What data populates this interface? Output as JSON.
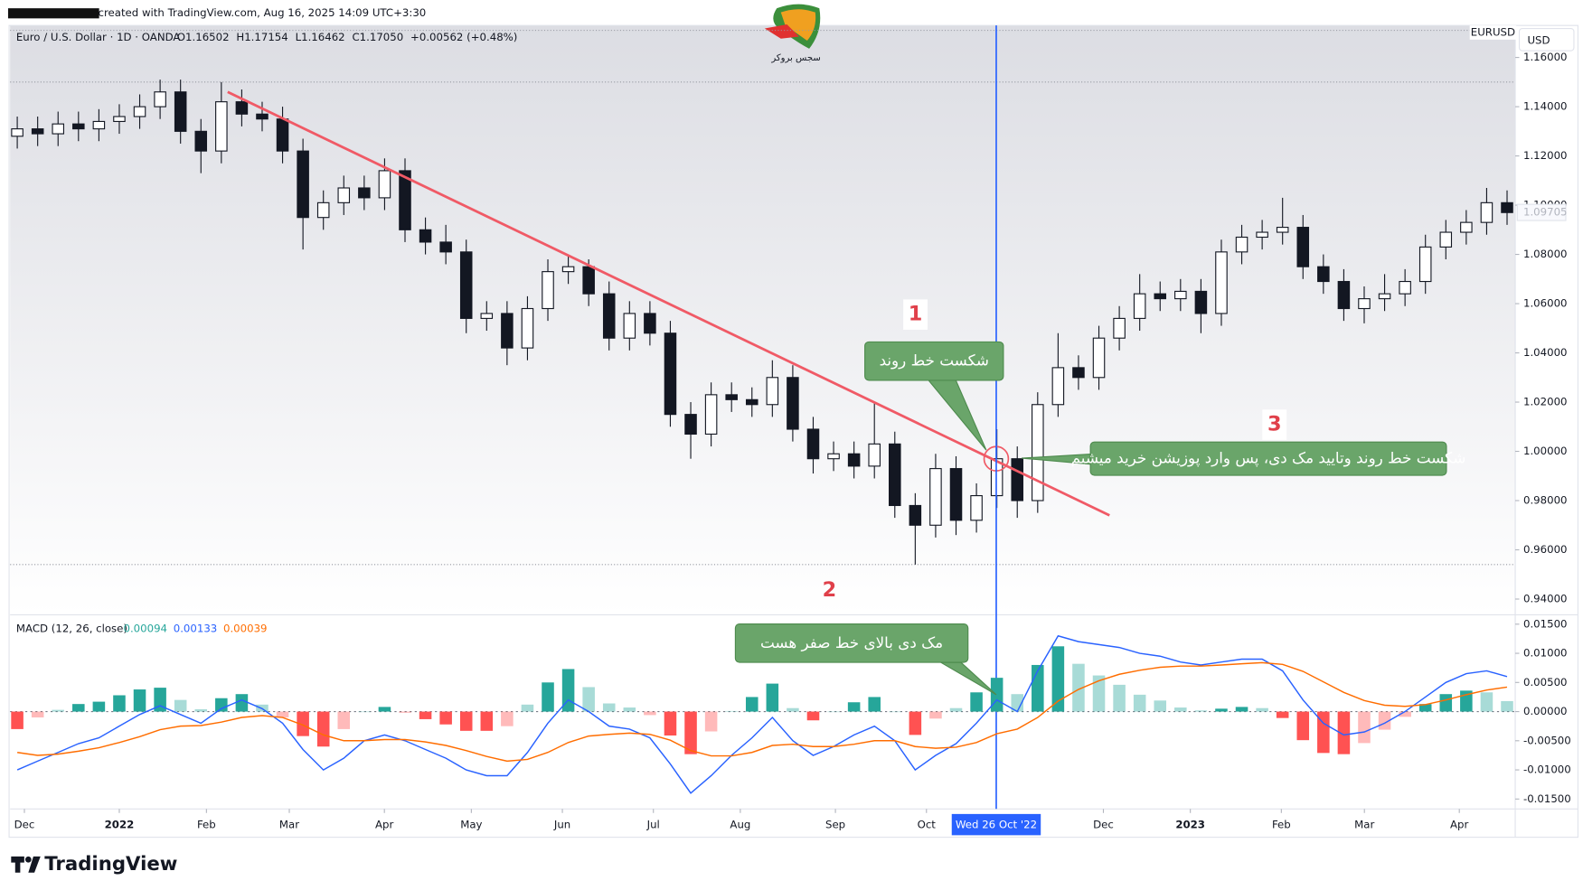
{
  "header": {
    "credit": "created with TradingView.com, Aug 16, 2025 14:09 UTC+3:30",
    "logo_text": "سجس بروکر"
  },
  "footer": {
    "brand": "TradingView"
  },
  "chart_data": [
    {
      "type": "candlestick",
      "title": "Euro / U.S. Dollar · 1D · OANDA",
      "legend_values": [
        "O1.16502",
        "H1.17154",
        "L1.16462",
        "C1.17050",
        "+0.00562 (+0.48%)"
      ],
      "symbol": "EURUSD",
      "currency": "USD",
      "last_price": 1.09705,
      "up_color": "#ffffff",
      "down_color": "#131722",
      "wick_color": "#131722",
      "open": [
        1.128,
        1.131,
        1.129,
        1.133,
        1.131,
        1.134,
        1.136,
        1.14,
        1.146,
        1.13,
        1.122,
        1.142,
        1.137,
        1.135,
        1.122,
        1.095,
        1.101,
        1.107,
        1.103,
        1.114,
        1.09,
        1.085,
        1.081,
        1.054,
        1.056,
        1.042,
        1.058,
        1.073,
        1.075,
        1.064,
        1.046,
        1.056,
        1.048,
        1.015,
        1.007,
        1.023,
        1.021,
        1.019,
        1.03,
        1.009,
        0.997,
        0.999,
        0.994,
        1.003,
        0.978,
        0.97,
        0.993,
        0.972,
        0.982,
        0.997,
        0.98,
        1.019,
        1.034,
        1.03,
        1.046,
        1.054,
        1.064,
        1.062,
        1.065,
        1.056,
        1.081,
        1.087,
        1.089,
        1.091,
        1.075,
        1.069,
        1.058,
        1.062,
        1.064,
        1.069,
        1.083,
        1.089,
        1.093,
        1.101
      ],
      "high": [
        1.136,
        1.136,
        1.138,
        1.138,
        1.139,
        1.141,
        1.145,
        1.151,
        1.151,
        1.135,
        1.15,
        1.147,
        1.142,
        1.14,
        1.127,
        1.106,
        1.112,
        1.112,
        1.119,
        1.119,
        1.095,
        1.092,
        1.086,
        1.061,
        1.061,
        1.063,
        1.078,
        1.08,
        1.078,
        1.069,
        1.061,
        1.061,
        1.053,
        1.02,
        1.028,
        1.028,
        1.026,
        1.037,
        1.035,
        1.014,
        1.004,
        1.004,
        1.02,
        1.008,
        0.983,
        0.999,
        0.998,
        0.987,
        1.009,
        1.002,
        1.024,
        1.048,
        1.039,
        1.051,
        1.059,
        1.072,
        1.069,
        1.07,
        1.07,
        1.086,
        1.092,
        1.094,
        1.103,
        1.096,
        1.08,
        1.074,
        1.067,
        1.072,
        1.074,
        1.088,
        1.094,
        1.098,
        1.107,
        1.106
      ],
      "low": [
        1.123,
        1.124,
        1.124,
        1.126,
        1.126,
        1.129,
        1.131,
        1.135,
        1.125,
        1.113,
        1.117,
        1.132,
        1.13,
        1.117,
        1.082,
        1.09,
        1.096,
        1.098,
        1.098,
        1.085,
        1.08,
        1.076,
        1.048,
        1.049,
        1.035,
        1.037,
        1.053,
        1.068,
        1.059,
        1.041,
        1.041,
        1.043,
        1.01,
        0.997,
        1.002,
        1.016,
        1.014,
        1.014,
        1.004,
        0.991,
        0.992,
        0.989,
        0.989,
        0.973,
        0.954,
        0.965,
        0.966,
        0.967,
        0.977,
        0.973,
        0.975,
        1.014,
        1.025,
        1.025,
        1.041,
        1.049,
        1.057,
        1.057,
        1.048,
        1.051,
        1.076,
        1.082,
        1.084,
        1.07,
        1.064,
        1.053,
        1.052,
        1.057,
        1.059,
        1.064,
        1.078,
        1.084,
        1.088,
        1.092
      ],
      "close": [
        1.131,
        1.129,
        1.133,
        1.131,
        1.134,
        1.136,
        1.14,
        1.146,
        1.13,
        1.122,
        1.142,
        1.137,
        1.135,
        1.122,
        1.095,
        1.101,
        1.107,
        1.103,
        1.114,
        1.09,
        1.085,
        1.081,
        1.054,
        1.056,
        1.042,
        1.058,
        1.073,
        1.075,
        1.064,
        1.046,
        1.056,
        1.048,
        1.015,
        1.007,
        1.023,
        1.021,
        1.019,
        1.03,
        1.009,
        0.997,
        0.999,
        0.994,
        1.003,
        0.978,
        0.97,
        0.993,
        0.972,
        0.982,
        0.997,
        0.98,
        1.019,
        1.034,
        1.03,
        1.046,
        1.054,
        1.064,
        1.062,
        1.065,
        1.056,
        1.081,
        1.087,
        1.089,
        1.091,
        1.075,
        1.069,
        1.058,
        1.062,
        1.064,
        1.069,
        1.083,
        1.089,
        1.093,
        1.101,
        1.097
      ],
      "xlim": [
        -0.35,
        73.4
      ],
      "ylim": [
        0.934,
        1.173
      ],
      "yticks": [
        {
          "value": 1.16,
          "label": "1.16000"
        },
        {
          "value": 1.14,
          "label": "1.14000"
        },
        {
          "value": 1.12,
          "label": "1.12000"
        },
        {
          "value": 1.1,
          "label": "1.10000"
        },
        {
          "value": 1.08,
          "label": "1.08000"
        },
        {
          "value": 1.06,
          "label": "1.06000"
        },
        {
          "value": 1.04,
          "label": "1.04000"
        },
        {
          "value": 1.02,
          "label": "1.02000"
        },
        {
          "value": 1.0,
          "label": "1.00000"
        },
        {
          "value": 0.98,
          "label": "0.98000"
        },
        {
          "value": 0.96,
          "label": "0.96000"
        },
        {
          "value": 0.94,
          "label": "0.94000"
        }
      ],
      "levels": [
        1.171,
        1.15,
        0.954
      ],
      "trendline": {
        "x": [
          10.31,
          53.52
        ],
        "y": [
          1.146,
          0.974
        ],
        "color": "#f05a66"
      },
      "crosshair": {
        "value": 47.97,
        "label": "Wed 26 Oct '22",
        "color": "#2962ff"
      },
      "breakout": {
        "x": 47.97,
        "y": 0.997
      },
      "markers": [
        "1",
        "2",
        "3"
      ],
      "callouts": [
        "شکست خط روند",
        "شکست خط روند وتایید مک دی، پس وارد پوزیشن خرید میشیم"
      ]
    },
    {
      "type": "macd",
      "title": "MACD (12, 26, close)",
      "legend_values": [
        0.00094,
        0.00133,
        0.00039
      ],
      "series": [
        {
          "name": "Histogram",
          "color": "#26a69a",
          "negative_color": "#ff5252",
          "values": [
            -0.003,
            -0.001,
            0.0003,
            0.0013,
            0.0017,
            0.0028,
            0.0038,
            0.0041,
            0.002,
            0.0004,
            0.0023,
            0.003,
            0.0012,
            -0.001,
            -0.0042,
            -0.006,
            -0.003,
            0.0,
            0.0008,
            -0.0002,
            -0.0013,
            -0.0022,
            -0.0033,
            -0.0033,
            -0.0025,
            0.0012,
            0.005,
            0.0073,
            0.0042,
            0.0014,
            0.0007,
            -0.0006,
            -0.0041,
            -0.0073,
            -0.0034,
            0.0001,
            0.0025,
            0.0048,
            0.0006,
            -0.0015,
            0.0,
            0.0016,
            0.0025,
            0.0,
            -0.004,
            -0.0012,
            0.0006,
            0.0033,
            0.0058,
            0.003,
            0.008,
            0.0112,
            0.0082,
            0.0062,
            0.0046,
            0.0029,
            0.0019,
            0.0007,
            0.0002,
            0.0005,
            0.0008,
            0.0006,
            -0.0011,
            -0.0049,
            -0.0071,
            -0.0073,
            -0.0054,
            -0.0031,
            -0.0009,
            0.0013,
            0.003,
            0.0036,
            0.0033,
            0.0018
          ]
        },
        {
          "name": "MACD",
          "color": "#2962ff",
          "values": [
            -0.01,
            -0.0085,
            -0.007,
            -0.0055,
            -0.0045,
            -0.0025,
            -0.0005,
            0.001,
            -0.0005,
            -0.002,
            0.0005,
            0.002,
            0.0005,
            -0.002,
            -0.0065,
            -0.01,
            -0.008,
            -0.005,
            -0.004,
            -0.005,
            -0.0065,
            -0.008,
            -0.01,
            -0.011,
            -0.011,
            -0.007,
            -0.002,
            0.002,
            0.0,
            -0.0025,
            -0.003,
            -0.0045,
            -0.009,
            -0.014,
            -0.011,
            -0.0075,
            -0.0045,
            -0.001,
            -0.005,
            -0.0075,
            -0.006,
            -0.004,
            -0.0025,
            -0.005,
            -0.01,
            -0.0075,
            -0.0055,
            -0.002,
            0.002,
            0.0,
            0.007,
            0.013,
            0.012,
            0.0115,
            0.011,
            0.01,
            0.0095,
            0.0085,
            0.008,
            0.0085,
            0.009,
            0.009,
            0.007,
            0.002,
            -0.002,
            -0.004,
            -0.0035,
            -0.002,
            0.0,
            0.0025,
            0.005,
            0.0065,
            0.007,
            0.006
          ]
        },
        {
          "name": "Signal",
          "color": "#ff6d00",
          "values": [
            -0.007,
            -0.0075,
            -0.0073,
            -0.0068,
            -0.0062,
            -0.0053,
            -0.0043,
            -0.0031,
            -0.0025,
            -0.0024,
            -0.0018,
            -0.001,
            -0.0007,
            -0.001,
            -0.0023,
            -0.004,
            -0.005,
            -0.005,
            -0.0048,
            -0.0048,
            -0.0052,
            -0.0058,
            -0.0067,
            -0.0077,
            -0.0085,
            -0.0082,
            -0.007,
            -0.0053,
            -0.0042,
            -0.0039,
            -0.0037,
            -0.0039,
            -0.0049,
            -0.0067,
            -0.0076,
            -0.0076,
            -0.007,
            -0.0058,
            -0.0056,
            -0.006,
            -0.006,
            -0.0056,
            -0.005,
            -0.005,
            -0.006,
            -0.0063,
            -0.0061,
            -0.0053,
            -0.0038,
            -0.003,
            -0.001,
            0.0018,
            0.0038,
            0.0053,
            0.0064,
            0.0071,
            0.0076,
            0.0078,
            0.0078,
            0.008,
            0.0082,
            0.0084,
            0.0081,
            0.0069,
            0.0051,
            0.0033,
            0.0019,
            0.0011,
            0.0009,
            0.0012,
            0.002,
            0.0029,
            0.0037,
            0.0042
          ]
        }
      ],
      "ylim": [
        -0.0167,
        0.0166
      ],
      "yticks": [
        {
          "value": 0.015,
          "label": "0.01500"
        },
        {
          "value": 0.01,
          "label": "0.01000"
        },
        {
          "value": 0.005,
          "label": "0.00500"
        },
        {
          "value": 0,
          "label": "0.00000"
        },
        {
          "value": -0.005,
          "label": "-0.00500"
        },
        {
          "value": -0.01,
          "label": "-0.01000"
        },
        {
          "value": -0.015,
          "label": "-0.01500"
        }
      ],
      "xticks": [
        {
          "value": 0.35,
          "label": "Dec"
        },
        {
          "value": 5.0,
          "label": "2022"
        },
        {
          "value": 9.27,
          "label": "Feb"
        },
        {
          "value": 13.33,
          "label": "Mar"
        },
        {
          "value": 17.99,
          "label": "Apr"
        },
        {
          "value": 22.25,
          "label": "May"
        },
        {
          "value": 26.71,
          "label": "Jun"
        },
        {
          "value": 31.17,
          "label": "Jul"
        },
        {
          "value": 35.43,
          "label": "Aug"
        },
        {
          "value": 40.09,
          "label": "Sep"
        },
        {
          "value": 44.55,
          "label": "Oct"
        },
        {
          "value": 53.22,
          "label": "Dec"
        },
        {
          "value": 57.48,
          "label": "2023"
        },
        {
          "value": 61.94,
          "label": "Feb"
        },
        {
          "value": 66.01,
          "label": "Mar"
        },
        {
          "value": 70.66,
          "label": "Apr"
        }
      ],
      "callout": "مک دی بالای خط صفر  هست"
    }
  ]
}
